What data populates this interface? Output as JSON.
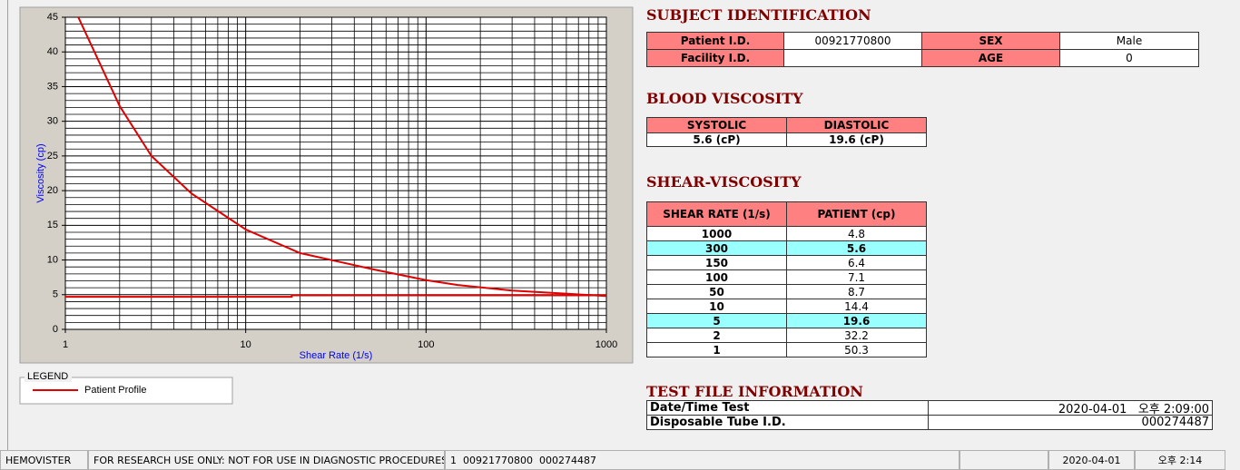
{
  "chart_data": {
    "type": "line",
    "xlabel": "Shear Rate (1/s)",
    "ylabel": "Viscosity (cp)",
    "xscale": "log",
    "xlim": [
      1,
      1000
    ],
    "xticks": [
      1,
      10,
      100,
      1000
    ],
    "xminor_ticks": [
      2,
      3,
      4,
      5,
      6,
      7,
      8,
      9,
      20,
      30,
      40,
      50,
      60,
      70,
      80,
      90,
      200,
      300,
      400,
      500,
      600,
      700,
      800,
      900
    ],
    "ylim": [
      0,
      45
    ],
    "yticks": [
      0,
      5,
      10,
      15,
      20,
      25,
      30,
      35,
      40,
      45
    ],
    "yminor_ticks": [
      1,
      2,
      3,
      4,
      6,
      7,
      8,
      9,
      11,
      12,
      13,
      14,
      16,
      17,
      18,
      19,
      21,
      22,
      23,
      24,
      26,
      27,
      28,
      29,
      31,
      32,
      33,
      34,
      36,
      37,
      38,
      39,
      41,
      42,
      43,
      44
    ],
    "grid": true,
    "legend_title": "LEGEND",
    "series": [
      {
        "name": "Patient Profile",
        "color": "#e00000",
        "x": [
          1.18,
          2,
          3,
          5,
          10,
          20,
          50,
          100,
          150,
          300,
          1000
        ],
        "values": [
          45,
          32.2,
          25,
          19.6,
          14.4,
          11,
          8.7,
          7.1,
          6.4,
          5.6,
          4.8
        ]
      },
      {
        "color": "#e00000",
        "x": [
          1,
          18,
          18,
          1000
        ],
        "values": [
          4.7,
          4.7,
          4.9,
          4.9
        ]
      }
    ]
  },
  "subject": {
    "title": "SUBJECT IDENTIFICATION",
    "rows": [
      [
        "Patient I.D.",
        "00921770800",
        "SEX",
        "Male"
      ],
      [
        "Facility I.D.",
        null,
        "AGE",
        "0"
      ]
    ]
  },
  "blood": {
    "title": "BLOOD VISCOSITY",
    "headers": [
      "SYSTOLIC",
      "DIASTOLIC"
    ],
    "values": [
      "5.6 (cP)",
      "19.6 (cP)"
    ]
  },
  "shear": {
    "title": "SHEAR-VISCOSITY",
    "headers": [
      "SHEAR RATE (1/s)",
      "PATIENT (cp)"
    ],
    "rows": [
      [
        "1000",
        "4.8"
      ],
      [
        "300",
        "5.6"
      ],
      [
        "150",
        "6.4"
      ],
      [
        "100",
        "7.1"
      ],
      [
        "50",
        "8.7"
      ],
      [
        "10",
        "14.4"
      ],
      [
        "5",
        "19.6"
      ],
      [
        "2",
        "32.2"
      ],
      [
        "1",
        "50.3"
      ]
    ],
    "highlight_rows": [
      1,
      6
    ]
  },
  "test_file": {
    "title": "TEST FILE INFORMATION",
    "rows": [
      [
        "Date/Time Test",
        "2020-04-01   오후 2:09:00"
      ],
      [
        "Disposable Tube I.D.",
        "000274487"
      ]
    ]
  },
  "status_bar": [
    "HEMOVISTER",
    "FOR RESEARCH USE ONLY: NOT FOR USE IN DIAGNOSTIC PROCEDURES",
    "1  00921770800  000274487",
    null,
    "2020-04-01",
    "오후 2:14"
  ]
}
